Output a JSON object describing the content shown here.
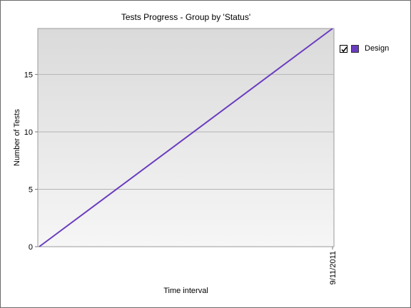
{
  "chart_data": {
    "type": "line",
    "title": "Tests Progress - Group by 'Status'",
    "xlabel": "Time interval",
    "ylabel": "Number of Tests",
    "x": [
      "",
      "9/11/2011"
    ],
    "ylim": [
      0,
      19
    ],
    "yticks": [
      0,
      5,
      10,
      15
    ],
    "grid": true,
    "legend_position": "right",
    "series": [
      {
        "name": "Design",
        "color": "#6a3cc0",
        "values": [
          0,
          19
        ]
      }
    ]
  },
  "legend": {
    "items": [
      {
        "label": "Design",
        "checked": true,
        "color": "#6a3cc0"
      }
    ]
  }
}
